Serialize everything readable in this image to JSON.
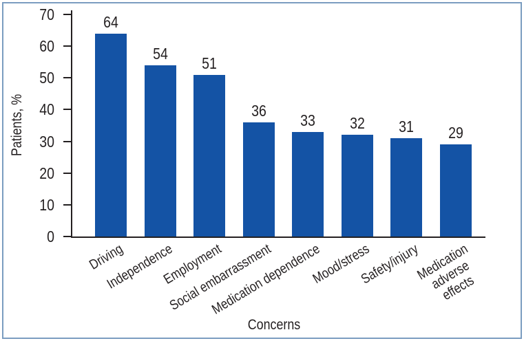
{
  "window": {
    "background": "#ffffff",
    "frame_border_color": "#7a9cc0"
  },
  "chart_data": {
    "type": "bar",
    "title": "",
    "xlabel": "Concerns",
    "ylabel": "Patients, %",
    "categories": [
      "Driving",
      "Independence",
      "Employment",
      "Social embarrassment",
      "Medication dependence",
      "Mood/stress",
      "Safety/injury",
      "Medication adverse\neffects"
    ],
    "values": [
      64,
      54,
      51,
      36,
      33,
      32,
      31,
      29
    ],
    "yticks": [
      0,
      10,
      20,
      30,
      40,
      50,
      60,
      70
    ],
    "ylim": [
      0,
      70
    ],
    "grid": false,
    "legend_position": "none",
    "value_labels": true,
    "bar_color": "#1453a5",
    "axis_color": "#231f20",
    "text_color": "#231f20"
  }
}
